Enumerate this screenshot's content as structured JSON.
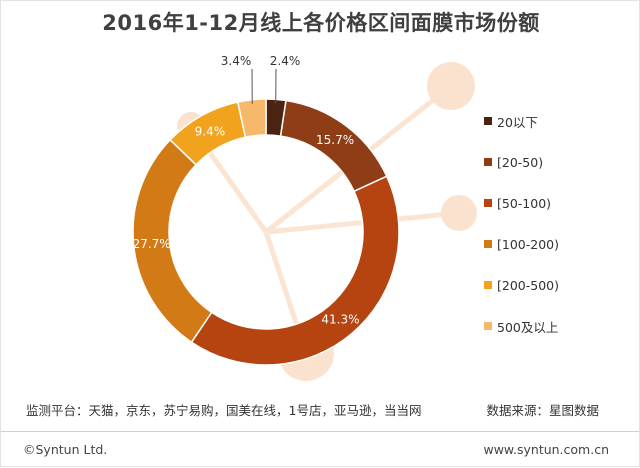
{
  "chart_data": {
    "type": "pie",
    "title": "2016年1-12月线上各价格区间面膜市场份额",
    "categories": [
      "20以下",
      "[20-50)",
      "[50-100)",
      "[100-200)",
      "[200-500)",
      "500及以上"
    ],
    "values": [
      2.4,
      15.7,
      41.3,
      27.7,
      9.4,
      3.4
    ],
    "value_labels": [
      "2.4%",
      "15.7%",
      "41.3%",
      "27.7%",
      "9.4%",
      "3.4%"
    ],
    "colors": [
      "#4a2410",
      "#8f3d17",
      "#b54410",
      "#d27a16",
      "#f2a31e",
      "#f6b86a"
    ],
    "donut": true,
    "legend_position": "right"
  },
  "footer": {
    "platforms": "监测平台：天猫，京东，苏宁易购，国美在线，1号店，亚马逊，当当网",
    "source": "数据来源：星图数据"
  },
  "bottom": {
    "copyright": "©Syntun Ltd.",
    "website": "www.syntun.com.cn"
  }
}
